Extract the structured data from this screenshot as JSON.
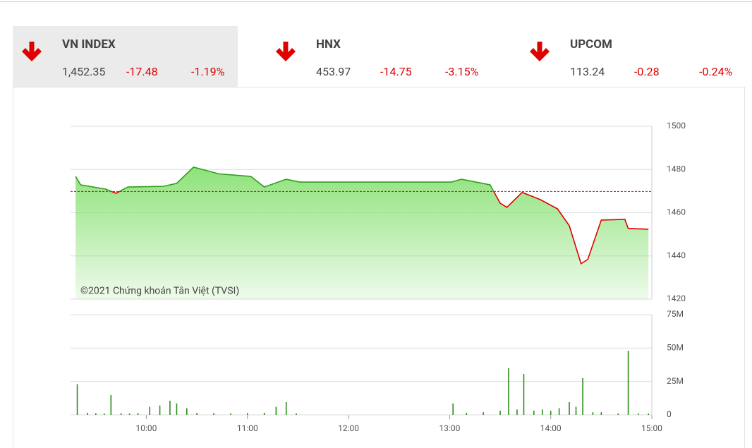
{
  "indices": [
    {
      "name": "VN INDEX",
      "value": "1,452.35",
      "change": "-17.48",
      "percent": "-1.19%"
    },
    {
      "name": "HNX",
      "value": "453.97",
      "change": "-14.75",
      "percent": "-3.15%"
    },
    {
      "name": "UPCOM",
      "value": "113.24",
      "change": "-0.28",
      "percent": "-0.24%"
    }
  ],
  "chart_data": [
    {
      "type": "line",
      "annotation": "©2021 Chứng khoán Tân Việt (TVSI)",
      "reference": 1469.83,
      "xlim": [
        "09:15",
        "15:00"
      ],
      "xticks": [
        "10:00",
        "11:00",
        "12:00",
        "13:00",
        "14:00",
        "15:00"
      ],
      "ylim": [
        1420,
        1500
      ],
      "yticks": [
        1420,
        1440,
        1460,
        1480,
        1500
      ],
      "grid": true,
      "up_color": "#2e9e1e",
      "down_color": "#e00000",
      "fill_color": "#8ee27a",
      "x": [
        "09:18",
        "09:21",
        "09:36",
        "09:42",
        "09:49",
        "10:10",
        "10:18",
        "10:28",
        "10:43",
        "11:02",
        "11:10",
        "11:23",
        "11:31",
        "13:01",
        "13:07",
        "13:24",
        "13:30",
        "13:34",
        "13:43",
        "13:54",
        "14:04",
        "14:11",
        "14:18",
        "14:22",
        "14:30",
        "14:44",
        "14:46",
        "14:58"
      ],
      "values": [
        1476.8,
        1472.9,
        1470.9,
        1469.0,
        1471.9,
        1472.2,
        1473.6,
        1481.1,
        1478.0,
        1476.8,
        1471.9,
        1475.5,
        1474.2,
        1474.2,
        1475.5,
        1472.9,
        1464.4,
        1462.5,
        1469.4,
        1466.0,
        1461.8,
        1454.0,
        1436.4,
        1438.4,
        1456.6,
        1456.9,
        1452.7,
        1452.35
      ]
    },
    {
      "type": "bar",
      "color": "#2e8b1e",
      "xlim": [
        "09:15",
        "15:00"
      ],
      "ylim": [
        0,
        75
      ],
      "yticks": [
        0,
        {
          "value": 25,
          "label": "25M"
        },
        {
          "value": 50,
          "label": "50M"
        },
        {
          "value": 75,
          "label": "75M"
        }
      ],
      "grid": true,
      "x": [
        "09:19",
        "09:25",
        "09:30",
        "09:35",
        "09:39",
        "09:45",
        "09:50",
        "09:55",
        "10:02",
        "10:08",
        "10:14",
        "10:18",
        "10:24",
        "10:30",
        "10:40",
        "10:50",
        "11:00",
        "11:10",
        "11:17",
        "11:23",
        "11:29",
        "13:02",
        "13:10",
        "13:20",
        "13:30",
        "13:35",
        "13:40",
        "13:44",
        "13:50",
        "13:55",
        "14:00",
        "14:05",
        "14:11",
        "14:15",
        "14:19",
        "14:25",
        "14:30",
        "14:40",
        "14:46",
        "14:52",
        "14:58"
      ],
      "values": [
        23,
        1.5,
        1.2,
        1,
        14.8,
        1.2,
        1,
        1.3,
        6,
        7,
        10.6,
        8.5,
        5,
        1.5,
        1.2,
        1,
        1.3,
        1.5,
        6,
        9.5,
        1,
        8.5,
        1.5,
        2,
        3,
        35,
        4,
        30.6,
        3,
        4,
        3,
        5,
        9.5,
        6,
        27.5,
        2,
        2,
        1,
        48,
        1,
        1
      ]
    }
  ]
}
